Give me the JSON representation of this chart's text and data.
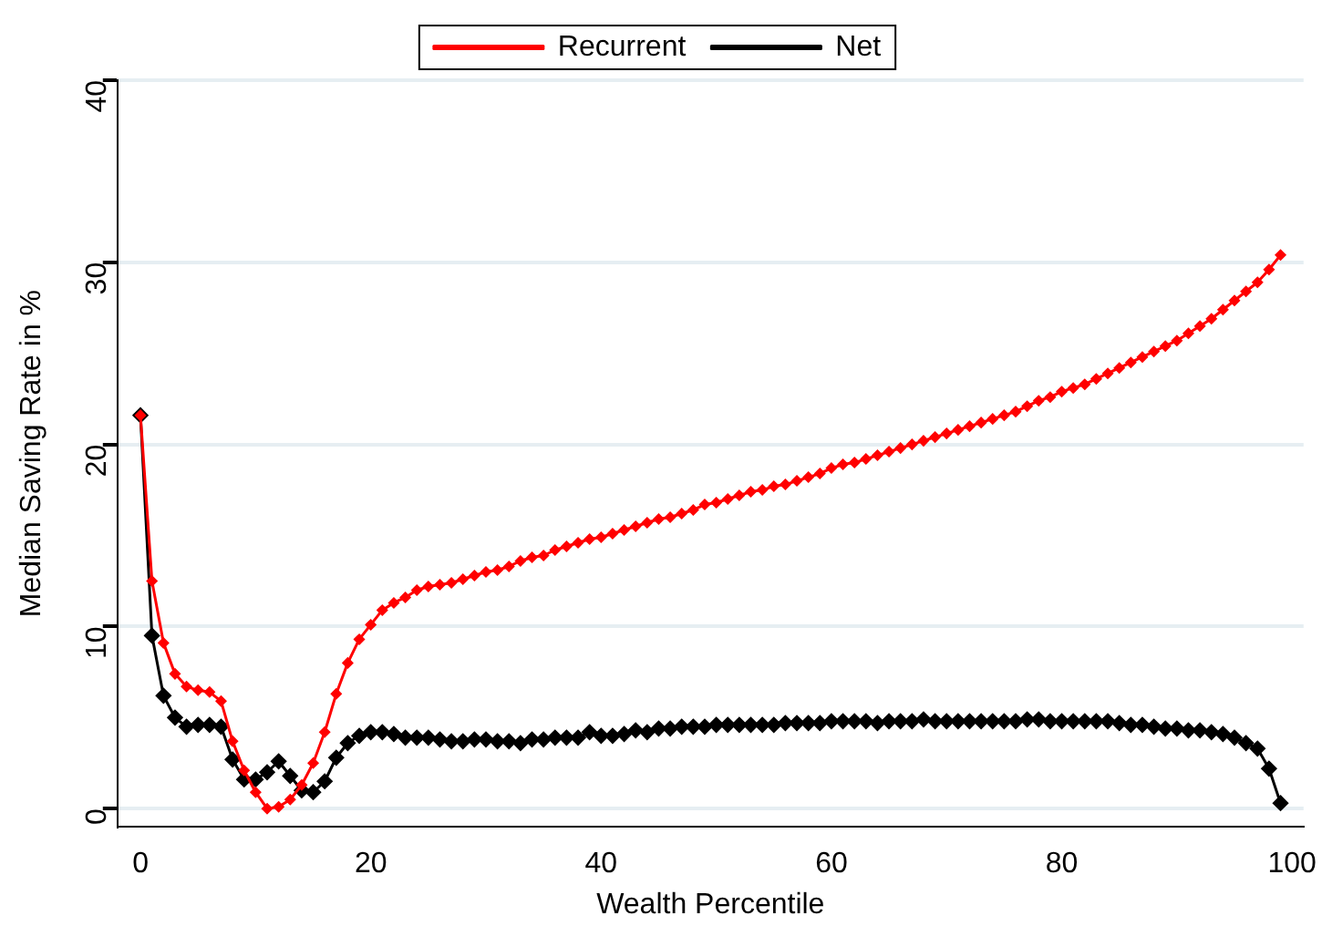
{
  "chart_data": {
    "type": "line",
    "xlabel": "Wealth Percentile",
    "ylabel": "Median Saving Rate in %",
    "x": [
      0,
      1,
      2,
      3,
      4,
      5,
      6,
      7,
      8,
      9,
      10,
      11,
      12,
      13,
      14,
      15,
      16,
      17,
      18,
      19,
      20,
      21,
      22,
      23,
      24,
      25,
      26,
      27,
      28,
      29,
      30,
      31,
      32,
      33,
      34,
      35,
      36,
      37,
      38,
      39,
      40,
      41,
      42,
      43,
      44,
      45,
      46,
      47,
      48,
      49,
      50,
      51,
      52,
      53,
      54,
      55,
      56,
      57,
      58,
      59,
      60,
      61,
      62,
      63,
      64,
      65,
      66,
      67,
      68,
      69,
      70,
      71,
      72,
      73,
      74,
      75,
      76,
      77,
      78,
      79,
      80,
      81,
      82,
      83,
      84,
      85,
      86,
      87,
      88,
      89,
      90,
      91,
      92,
      93,
      94,
      95,
      96,
      97,
      98,
      99
    ],
    "series": [
      {
        "name": "Recurrent",
        "color": "#ff0000",
        "values": [
          21.6,
          12.5,
          9.1,
          7.4,
          6.7,
          6.5,
          6.4,
          5.9,
          3.7,
          2.1,
          0.9,
          0.0,
          0.1,
          0.5,
          1.3,
          2.5,
          4.2,
          6.3,
          8.0,
          9.3,
          10.1,
          10.9,
          11.3,
          11.6,
          12.0,
          12.2,
          12.3,
          12.4,
          12.6,
          12.8,
          13.0,
          13.1,
          13.3,
          13.6,
          13.8,
          13.9,
          14.2,
          14.4,
          14.6,
          14.8,
          14.9,
          15.1,
          15.3,
          15.5,
          15.7,
          15.9,
          16.0,
          16.2,
          16.4,
          16.7,
          16.8,
          17.0,
          17.2,
          17.4,
          17.5,
          17.7,
          17.8,
          18.0,
          18.2,
          18.4,
          18.7,
          18.9,
          19.0,
          19.2,
          19.4,
          19.6,
          19.8,
          20.0,
          20.2,
          20.4,
          20.6,
          20.8,
          21.0,
          21.2,
          21.4,
          21.6,
          21.8,
          22.1,
          22.4,
          22.6,
          22.9,
          23.1,
          23.3,
          23.6,
          23.9,
          24.2,
          24.5,
          24.8,
          25.1,
          25.4,
          25.7,
          26.1,
          26.5,
          26.9,
          27.4,
          27.9,
          28.4,
          28.9,
          29.6,
          30.4
        ]
      },
      {
        "name": "Net",
        "color": "#000000",
        "values": [
          21.6,
          9.5,
          6.2,
          5.0,
          4.5,
          4.6,
          4.6,
          4.5,
          2.7,
          1.6,
          1.6,
          2.0,
          2.6,
          1.8,
          1.0,
          0.9,
          1.5,
          2.8,
          3.6,
          4.0,
          4.2,
          4.2,
          4.1,
          3.9,
          3.9,
          3.9,
          3.8,
          3.7,
          3.7,
          3.8,
          3.8,
          3.7,
          3.7,
          3.6,
          3.8,
          3.8,
          3.9,
          3.9,
          3.9,
          4.2,
          4.0,
          4.0,
          4.1,
          4.3,
          4.2,
          4.4,
          4.4,
          4.5,
          4.5,
          4.5,
          4.6,
          4.6,
          4.6,
          4.6,
          4.6,
          4.6,
          4.7,
          4.7,
          4.7,
          4.7,
          4.8,
          4.8,
          4.8,
          4.8,
          4.7,
          4.8,
          4.8,
          4.8,
          4.9,
          4.8,
          4.8,
          4.8,
          4.8,
          4.8,
          4.8,
          4.8,
          4.8,
          4.9,
          4.9,
          4.8,
          4.8,
          4.8,
          4.8,
          4.8,
          4.8,
          4.7,
          4.6,
          4.6,
          4.5,
          4.4,
          4.4,
          4.3,
          4.3,
          4.2,
          4.1,
          3.9,
          3.6,
          3.3,
          2.2,
          0.3
        ]
      }
    ],
    "xlim": [
      -2,
      101
    ],
    "xticks": [
      0,
      20,
      40,
      60,
      80,
      100
    ],
    "ylim": [
      -1,
      40
    ],
    "yticks": [
      0,
      10,
      20,
      30,
      40
    ],
    "grid": "y",
    "legend": "top",
    "marker": "diamond",
    "line_style": "solid"
  }
}
